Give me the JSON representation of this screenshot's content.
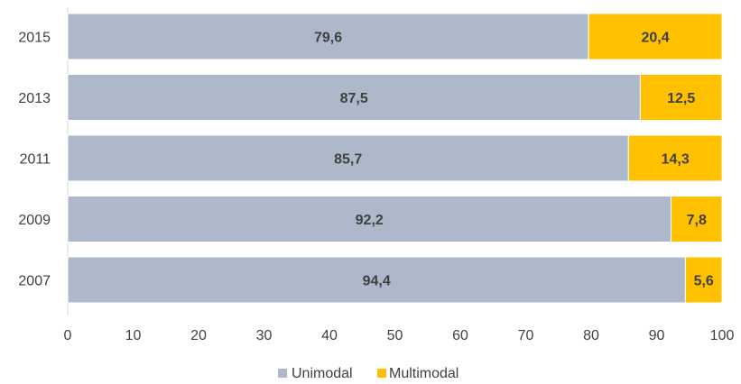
{
  "chart_data": {
    "type": "bar",
    "orientation": "horizontal",
    "stacked": true,
    "categories": [
      "2015",
      "2013",
      "2011",
      "2009",
      "2007"
    ],
    "series": [
      {
        "name": "Unimodal",
        "values": [
          79.6,
          87.5,
          85.7,
          92.2,
          94.4
        ],
        "labels": [
          "79,6",
          "87,5",
          "85,7",
          "92,2",
          "94,4"
        ],
        "color": "#ADB9CA"
      },
      {
        "name": "Multimodal",
        "values": [
          20.4,
          12.5,
          14.3,
          7.8,
          5.6
        ],
        "labels": [
          "20,4",
          "12,5",
          "14,3",
          "7,8",
          "5,6"
        ],
        "color": "#FFC000"
      }
    ],
    "xlim": [
      0,
      100
    ],
    "xticks": [
      "0",
      "10",
      "20",
      "30",
      "40",
      "50",
      "60",
      "70",
      "80",
      "90",
      "100"
    ],
    "grid": false,
    "legend_position": "bottom-center"
  }
}
